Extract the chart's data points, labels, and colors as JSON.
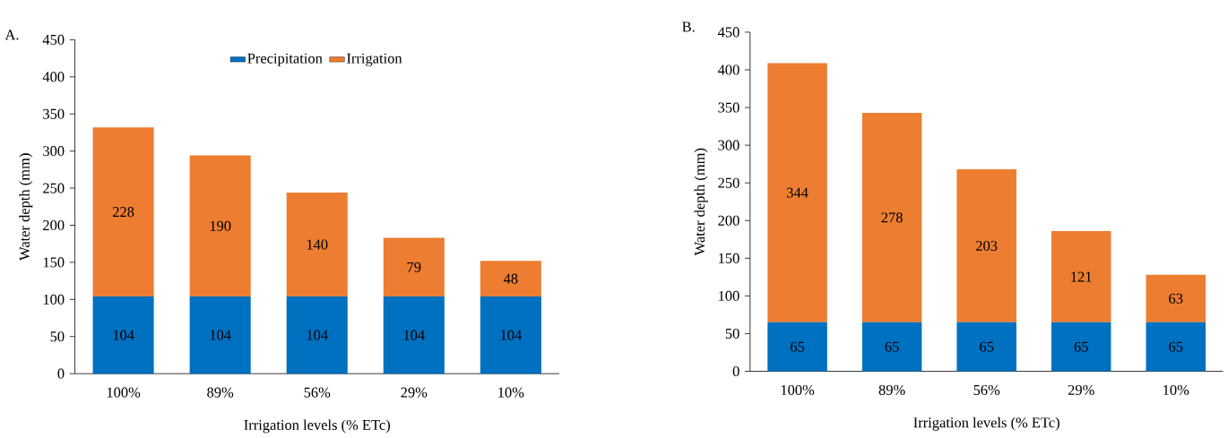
{
  "chart_data": [
    {
      "type": "bar",
      "title": "A.",
      "xlabel": "Irrigation levels (% ETc)",
      "ylabel": "Water depth (mm)",
      "stacked": true,
      "data_labels": true,
      "legend": "top",
      "grid": false,
      "categories": [
        "100%",
        "89%",
        "56%",
        "29%",
        "10%"
      ],
      "series": [
        {
          "name": "Precipitation",
          "color": "#0070c0",
          "values": [
            104,
            104,
            104,
            104,
            104
          ]
        },
        {
          "name": "Irrigation",
          "color": "#ed7d31",
          "values": [
            228,
            190,
            140,
            79,
            48
          ]
        }
      ],
      "ylim": [
        0,
        450
      ],
      "yticks": [
        0,
        50,
        100,
        150,
        200,
        250,
        300,
        350,
        400,
        450
      ]
    },
    {
      "type": "bar",
      "title": "B.",
      "xlabel": "Irrigation levels (% ETc)",
      "ylabel": "Water depth (mm)",
      "stacked": true,
      "data_labels": true,
      "grid": false,
      "categories": [
        "100%",
        "89%",
        "56%",
        "29%",
        "10%"
      ],
      "series": [
        {
          "color": "#0070c0",
          "values": [
            65,
            65,
            65,
            65,
            65
          ]
        },
        {
          "color": "#ed7d31",
          "values": [
            344,
            278,
            203,
            121,
            63
          ]
        }
      ],
      "ylim": [
        0,
        450
      ],
      "yticks": [
        0,
        50,
        100,
        150,
        200,
        250,
        300,
        350,
        400,
        450
      ]
    }
  ]
}
